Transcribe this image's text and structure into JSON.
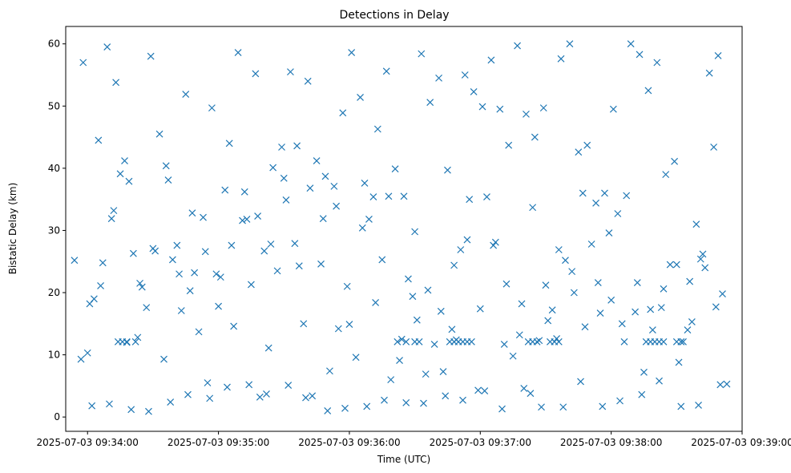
{
  "chart_data": {
    "type": "scatter",
    "title": "Detections in Delay",
    "xlabel": "Time (UTC)",
    "ylabel": "Bistatic Delay (km)",
    "x_is_time": true,
    "xlim": [
      "2025-07-03 09:33:50",
      "2025-07-03 09:39:00"
    ],
    "ylim": [
      -2.3,
      62.8
    ],
    "xticks": [
      {
        "value": "2025-07-03 09:34:00",
        "label": "2025-07-03 09:34:00"
      },
      {
        "value": "2025-07-03 09:35:00",
        "label": "2025-07-03 09:35:00"
      },
      {
        "value": "2025-07-03 09:36:00",
        "label": "2025-07-03 09:36:00"
      },
      {
        "value": "2025-07-03 09:37:00",
        "label": "2025-07-03 09:37:00"
      },
      {
        "value": "2025-07-03 09:38:00",
        "label": "2025-07-03 09:38:00"
      },
      {
        "value": "2025-07-03 09:39:00",
        "label": "2025-07-03 09:39:00"
      }
    ],
    "yticks": [
      0,
      10,
      20,
      30,
      40,
      50,
      60
    ],
    "ytick_labels": [
      "0",
      "10",
      "20",
      "30",
      "40",
      "50",
      "60"
    ],
    "marker": "x",
    "color": "#1f77b4",
    "grid": false,
    "series": [
      {
        "x": [
          "2025-07-03 09:33:54",
          "2025-07-03 09:33:58",
          "2025-07-03 09:34:01",
          "2025-07-03 09:34:05",
          "2025-07-03 09:34:09",
          "2025-07-03 09:34:13",
          "2025-07-03 09:34:17",
          "2025-07-03 09:34:21",
          "2025-07-03 09:34:25",
          "2025-07-03 09:34:29",
          "2025-07-03 09:34:33",
          "2025-07-03 09:34:37",
          "2025-07-03 09:34:41",
          "2025-07-03 09:34:45",
          "2025-07-03 09:34:49",
          "2025-07-03 09:34:53",
          "2025-07-03 09:34:57",
          "2025-07-03 09:35:01",
          "2025-07-03 09:35:05",
          "2025-07-03 09:35:09",
          "2025-07-03 09:35:13",
          "2025-07-03 09:35:17",
          "2025-07-03 09:35:21",
          "2025-07-03 09:35:25",
          "2025-07-03 09:35:29",
          "2025-07-03 09:35:33",
          "2025-07-03 09:35:37",
          "2025-07-03 09:35:41",
          "2025-07-03 09:35:45",
          "2025-07-03 09:35:49",
          "2025-07-03 09:35:53",
          "2025-07-03 09:35:57",
          "2025-07-03 09:36:01",
          "2025-07-03 09:36:05",
          "2025-07-03 09:36:09",
          "2025-07-03 09:36:13",
          "2025-07-03 09:36:17",
          "2025-07-03 09:36:21",
          "2025-07-03 09:36:25",
          "2025-07-03 09:36:29",
          "2025-07-03 09:36:33",
          "2025-07-03 09:36:37",
          "2025-07-03 09:36:41",
          "2025-07-03 09:36:45",
          "2025-07-03 09:36:49",
          "2025-07-03 09:36:53",
          "2025-07-03 09:36:57",
          "2025-07-03 09:37:01",
          "2025-07-03 09:37:05",
          "2025-07-03 09:37:09",
          "2025-07-03 09:37:13",
          "2025-07-03 09:37:17",
          "2025-07-03 09:37:21",
          "2025-07-03 09:37:25",
          "2025-07-03 09:37:29",
          "2025-07-03 09:37:33",
          "2025-07-03 09:37:37",
          "2025-07-03 09:37:41",
          "2025-07-03 09:37:45",
          "2025-07-03 09:37:49",
          "2025-07-03 09:37:53",
          "2025-07-03 09:37:57",
          "2025-07-03 09:38:01",
          "2025-07-03 09:38:05",
          "2025-07-03 09:38:09",
          "2025-07-03 09:38:13",
          "2025-07-03 09:38:17",
          "2025-07-03 09:38:21",
          "2025-07-03 09:38:25",
          "2025-07-03 09:38:29",
          "2025-07-03 09:38:33",
          "2025-07-03 09:38:37",
          "2025-07-03 09:38:41",
          "2025-07-03 09:38:45",
          "2025-07-03 09:38:49",
          "2025-07-03 09:38:53",
          "2025-07-03 09:33:57",
          "2025-07-03 09:34:03",
          "2025-07-03 09:34:07",
          "2025-07-03 09:34:11",
          "2025-07-03 09:34:15",
          "2025-07-03 09:34:19",
          "2025-07-03 09:34:23",
          "2025-07-03 09:34:27",
          "2025-07-03 09:34:31",
          "2025-07-03 09:34:35",
          "2025-07-03 09:34:39",
          "2025-07-03 09:34:43",
          "2025-07-03 09:34:47",
          "2025-07-03 09:34:51",
          "2025-07-03 09:34:55",
          "2025-07-03 09:34:59",
          "2025-07-03 09:35:03",
          "2025-07-03 09:35:07",
          "2025-07-03 09:35:11",
          "2025-07-03 09:35:15",
          "2025-07-03 09:35:19",
          "2025-07-03 09:35:23",
          "2025-07-03 09:35:27",
          "2025-07-03 09:35:31",
          "2025-07-03 09:35:35",
          "2025-07-03 09:35:39",
          "2025-07-03 09:35:43",
          "2025-07-03 09:35:47",
          "2025-07-03 09:35:51",
          "2025-07-03 09:35:55",
          "2025-07-03 09:35:59",
          "2025-07-03 09:36:03",
          "2025-07-03 09:36:07",
          "2025-07-03 09:36:11",
          "2025-07-03 09:36:15",
          "2025-07-03 09:36:19",
          "2025-07-03 09:36:23",
          "2025-07-03 09:36:27",
          "2025-07-03 09:36:31",
          "2025-07-03 09:36:35",
          "2025-07-03 09:36:39",
          "2025-07-03 09:36:43",
          "2025-07-03 09:36:47",
          "2025-07-03 09:36:51",
          "2025-07-03 09:36:55",
          "2025-07-03 09:36:59",
          "2025-07-03 09:37:03",
          "2025-07-03 09:37:07",
          "2025-07-03 09:37:11",
          "2025-07-03 09:37:15",
          "2025-07-03 09:37:19",
          "2025-07-03 09:37:23",
          "2025-07-03 09:37:27",
          "2025-07-03 09:37:31",
          "2025-07-03 09:37:35",
          "2025-07-03 09:37:39",
          "2025-07-03 09:37:43",
          "2025-07-03 09:37:47",
          "2025-07-03 09:37:51",
          "2025-07-03 09:37:55",
          "2025-07-03 09:37:59",
          "2025-07-03 09:38:03",
          "2025-07-03 09:38:07",
          "2025-07-03 09:38:11",
          "2025-07-03 09:38:15",
          "2025-07-03 09:38:19",
          "2025-07-03 09:38:23",
          "2025-07-03 09:38:27",
          "2025-07-03 09:38:31",
          "2025-07-03 09:38:35",
          "2025-07-03 09:38:39",
          "2025-07-03 09:38:43",
          "2025-07-03 09:38:47",
          "2025-07-03 09:38:51",
          "2025-07-03 09:34:00",
          "2025-07-03 09:34:06",
          "2025-07-03 09:34:12",
          "2025-07-03 09:34:18",
          "2025-07-03 09:34:24",
          "2025-07-03 09:34:30",
          "2025-07-03 09:34:36",
          "2025-07-03 09:34:42",
          "2025-07-03 09:34:48",
          "2025-07-03 09:34:54",
          "2025-07-03 09:35:00",
          "2025-07-03 09:35:06",
          "2025-07-03 09:35:12",
          "2025-07-03 09:35:18",
          "2025-07-03 09:35:24",
          "2025-07-03 09:35:30",
          "2025-07-03 09:35:36",
          "2025-07-03 09:35:42",
          "2025-07-03 09:35:48",
          "2025-07-03 09:35:54",
          "2025-07-03 09:36:00",
          "2025-07-03 09:36:06",
          "2025-07-03 09:36:12",
          "2025-07-03 09:36:18",
          "2025-07-03 09:36:24",
          "2025-07-03 09:36:30",
          "2025-07-03 09:36:36",
          "2025-07-03 09:36:42",
          "2025-07-03 09:36:48",
          "2025-07-03 09:36:54",
          "2025-07-03 09:37:00",
          "2025-07-03 09:37:06",
          "2025-07-03 09:37:12",
          "2025-07-03 09:37:18",
          "2025-07-03 09:37:24",
          "2025-07-03 09:37:30",
          "2025-07-03 09:37:36",
          "2025-07-03 09:37:42",
          "2025-07-03 09:37:48",
          "2025-07-03 09:37:54",
          "2025-07-03 09:38:00",
          "2025-07-03 09:38:06",
          "2025-07-03 09:38:12",
          "2025-07-03 09:38:18",
          "2025-07-03 09:38:24",
          "2025-07-03 09:38:30",
          "2025-07-03 09:38:36",
          "2025-07-03 09:38:42",
          "2025-07-03 09:38:48",
          "2025-07-03 09:34:02",
          "2025-07-03 09:34:10",
          "2025-07-03 09:34:20",
          "2025-07-03 09:34:28",
          "2025-07-03 09:34:38",
          "2025-07-03 09:34:46",
          "2025-07-03 09:34:56",
          "2025-07-03 09:35:04",
          "2025-07-03 09:35:14",
          "2025-07-03 09:35:22",
          "2025-07-03 09:35:32",
          "2025-07-03 09:35:40",
          "2025-07-03 09:35:50",
          "2025-07-03 09:35:58",
          "2025-07-03 09:36:08",
          "2025-07-03 09:36:16",
          "2025-07-03 09:36:26",
          "2025-07-03 09:36:34",
          "2025-07-03 09:36:44",
          "2025-07-03 09:36:52",
          "2025-07-03 09:37:02",
          "2025-07-03 09:37:10",
          "2025-07-03 09:37:20",
          "2025-07-03 09:37:28",
          "2025-07-03 09:37:38",
          "2025-07-03 09:37:46",
          "2025-07-03 09:37:56",
          "2025-07-03 09:38:04",
          "2025-07-03 09:38:14",
          "2025-07-03 09:38:22",
          "2025-07-03 09:38:32",
          "2025-07-03 09:38:40",
          "2025-07-03 09:38:50",
          "2025-07-03 09:34:14",
          "2025-07-03 09:34:16",
          "2025-07-03 09:34:18",
          "2025-07-03 09:34:22",
          "2025-07-03 09:36:22",
          "2025-07-03 09:36:26",
          "2025-07-03 09:36:30",
          "2025-07-03 09:36:32",
          "2025-07-03 09:36:46",
          "2025-07-03 09:36:48",
          "2025-07-03 09:36:50",
          "2025-07-03 09:36:52",
          "2025-07-03 09:36:54",
          "2025-07-03 09:36:56",
          "2025-07-03 09:37:22",
          "2025-07-03 09:37:24",
          "2025-07-03 09:37:26",
          "2025-07-03 09:37:32",
          "2025-07-03 09:37:34",
          "2025-07-03 09:37:36",
          "2025-07-03 09:38:16",
          "2025-07-03 09:38:18",
          "2025-07-03 09:38:20",
          "2025-07-03 09:38:22",
          "2025-07-03 09:38:24",
          "2025-07-03 09:38:30",
          "2025-07-03 09:38:32"
        ],
        "y": [
          25.2,
          57.0,
          18.2,
          44.5,
          59.5,
          53.8,
          41.2,
          26.3,
          20.9,
          58.0,
          45.5,
          38.1,
          27.6,
          51.9,
          23.2,
          32.1,
          49.7,
          22.5,
          44.0,
          58.6,
          31.8,
          55.2,
          26.7,
          40.1,
          43.4,
          55.5,
          24.3,
          54.0,
          41.2,
          38.7,
          37.1,
          48.9,
          58.6,
          51.4,
          31.8,
          46.3,
          55.6,
          39.9,
          35.5,
          19.4,
          58.4,
          50.6,
          54.5,
          39.7,
          12.4,
          55.0,
          52.3,
          49.9,
          57.4,
          49.5,
          43.7,
          59.7,
          48.7,
          45.0,
          49.7,
          17.2,
          57.6,
          60.0,
          42.6,
          43.7,
          34.4,
          36.0,
          49.5,
          15.0,
          60.0,
          58.3,
          52.5,
          57.0,
          39.0,
          41.1,
          12.1,
          15.3,
          25.4,
          55.3,
          58.1,
          5.3,
          9.3,
          19.0,
          24.8,
          31.9,
          39.1,
          37.9,
          12.8,
          17.6,
          26.7,
          9.3,
          25.3,
          17.1,
          20.3,
          13.7,
          5.5,
          23.0,
          36.5,
          14.6,
          31.6,
          21.3,
          3.2,
          11.1,
          23.5,
          34.9,
          27.9,
          15.0,
          3.4,
          24.6,
          7.4,
          14.2,
          21.0,
          9.6,
          37.6,
          35.4,
          25.3,
          6.0,
          9.1,
          22.2,
          15.6,
          6.9,
          11.7,
          7.3,
          14.1,
          26.9,
          35.0,
          4.3,
          35.4,
          28.1,
          11.7,
          9.8,
          18.2,
          3.8,
          12.3,
          15.5,
          12.6,
          25.2,
          20.0,
          36.0,
          27.8,
          16.7,
          29.6,
          32.7,
          35.6,
          16.9,
          7.2,
          14.0,
          17.6,
          24.5,
          8.8,
          14.0,
          31.0,
          24.0,
          43.4,
          19.8,
          10.3,
          21.1,
          33.2,
          12.0,
          21.5,
          27.1,
          40.4,
          23.0,
          32.8,
          26.6,
          17.8,
          27.6,
          36.2,
          32.3,
          27.8,
          38.4,
          43.6,
          36.8,
          31.9,
          33.9,
          14.9,
          30.4,
          18.4,
          35.5,
          12.5,
          29.8,
          20.4,
          17.0,
          24.4,
          28.5,
          17.4,
          27.6,
          21.4,
          13.2,
          33.7,
          21.2,
          26.9,
          23.4,
          14.5,
          21.6,
          18.8,
          12.1,
          21.6,
          17.3,
          20.6,
          24.5,
          21.8,
          26.2,
          17.7,
          1.8,
          2.1,
          1.2,
          0.9,
          2.4,
          3.6,
          3.0,
          4.8,
          5.2,
          3.7,
          5.1,
          3.1,
          1.0,
          1.4,
          1.7,
          2.7,
          2.3,
          2.2,
          3.4,
          2.7,
          4.2,
          1.3,
          4.6,
          1.6,
          1.6,
          5.7,
          1.7,
          2.6,
          3.6,
          5.8,
          1.7,
          1.9,
          5.2,
          12.1,
          12.1,
          12.1,
          12.1,
          12.1,
          12.1,
          12.1,
          12.1,
          12.1,
          12.1,
          12.1,
          12.1,
          12.1,
          12.1,
          12.1,
          12.1,
          12.1,
          12.1,
          12.1,
          12.1,
          12.1,
          12.1,
          12.1,
          12.1,
          12.1,
          12.1,
          12.1
        ]
      }
    ]
  }
}
